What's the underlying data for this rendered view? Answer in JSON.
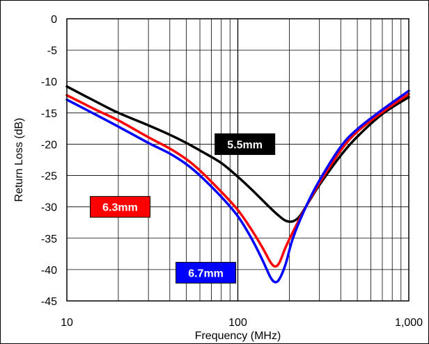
{
  "chart_data": {
    "type": "line",
    "xlabel": "Frequency (MHz)",
    "ylabel": "Return Loss (dB)",
    "x_scale": "log",
    "xlim": [
      10,
      1000
    ],
    "ylim": [
      -45,
      0
    ],
    "x_ticks": [
      "10",
      "100",
      "1,000"
    ],
    "y_ticks": [
      "0",
      "-5",
      "-10",
      "-15",
      "-20",
      "-25",
      "-30",
      "-35",
      "-40",
      "-45"
    ],
    "grid": true,
    "series": [
      {
        "name": "5.5mm",
        "color": "#000000",
        "points": [
          [
            10,
            -10.8
          ],
          [
            15,
            -13.3
          ],
          [
            20,
            -15.0
          ],
          [
            30,
            -17.0
          ],
          [
            40,
            -18.5
          ],
          [
            50,
            -19.8
          ],
          [
            60,
            -21.0
          ],
          [
            80,
            -23.0
          ],
          [
            100,
            -25.2
          ],
          [
            120,
            -27.2
          ],
          [
            150,
            -29.8
          ],
          [
            170,
            -31.2
          ],
          [
            190,
            -32.2
          ],
          [
            210,
            -32.3
          ],
          [
            230,
            -31.5
          ],
          [
            260,
            -29.2
          ],
          [
            300,
            -26.5
          ],
          [
            400,
            -21.8
          ],
          [
            500,
            -18.8
          ],
          [
            700,
            -15.2
          ],
          [
            1000,
            -12.5
          ]
        ]
      },
      {
        "name": "6.3mm",
        "color": "#ff0000",
        "points": [
          [
            10,
            -12.2
          ],
          [
            15,
            -14.6
          ],
          [
            20,
            -16.2
          ],
          [
            30,
            -18.9
          ],
          [
            40,
            -20.7
          ],
          [
            50,
            -22.4
          ],
          [
            60,
            -24.2
          ],
          [
            80,
            -27.6
          ],
          [
            100,
            -30.5
          ],
          [
            120,
            -33.6
          ],
          [
            140,
            -36.6
          ],
          [
            155,
            -38.8
          ],
          [
            165,
            -39.5
          ],
          [
            175,
            -38.9
          ],
          [
            190,
            -36.5
          ],
          [
            210,
            -34.0
          ],
          [
            250,
            -30.0
          ],
          [
            300,
            -26.2
          ],
          [
            400,
            -21.0
          ],
          [
            500,
            -18.0
          ],
          [
            700,
            -14.9
          ],
          [
            1000,
            -12.0
          ]
        ]
      },
      {
        "name": "6.7mm",
        "color": "#0000ff",
        "points": [
          [
            10,
            -12.9
          ],
          [
            15,
            -15.4
          ],
          [
            20,
            -17.2
          ],
          [
            30,
            -19.8
          ],
          [
            40,
            -21.5
          ],
          [
            50,
            -23.2
          ],
          [
            60,
            -25.0
          ],
          [
            80,
            -28.4
          ],
          [
            100,
            -31.5
          ],
          [
            120,
            -35.0
          ],
          [
            140,
            -38.6
          ],
          [
            155,
            -41.2
          ],
          [
            165,
            -42.0
          ],
          [
            175,
            -41.5
          ],
          [
            190,
            -39.2
          ],
          [
            210,
            -35.0
          ],
          [
            250,
            -30.0
          ],
          [
            300,
            -25.8
          ],
          [
            400,
            -20.4
          ],
          [
            500,
            -17.6
          ],
          [
            700,
            -14.5
          ],
          [
            1000,
            -11.5
          ]
        ]
      }
    ],
    "annotations": [
      {
        "text": "5.5mm",
        "series": "5.5mm",
        "at": [
          110,
          -20.0
        ],
        "background": "#000000",
        "color": "#ffffff"
      },
      {
        "text": "6.3mm",
        "series": "6.3mm",
        "at": [
          20.5,
          -30.0
        ],
        "background": "#ff0000",
        "color": "#ffffff"
      },
      {
        "text": "6.7mm",
        "series": "6.7mm",
        "at": [
          65,
          -40.5
        ],
        "background": "#0000ff",
        "color": "#ffffff"
      }
    ]
  }
}
